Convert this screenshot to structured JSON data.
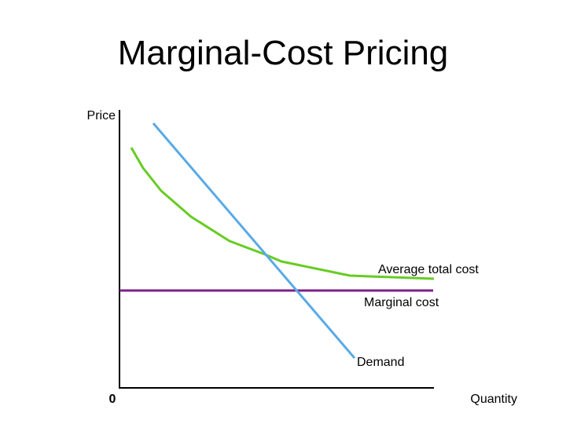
{
  "title": "Marginal-Cost Pricing",
  "axes": {
    "y_label": "Price",
    "x_label": "Quantity",
    "origin_label": "0"
  },
  "curves": [
    {
      "id": "demand",
      "label": "Demand",
      "color": "#5aaae6"
    },
    {
      "id": "average-total-cost",
      "label": "Average total cost",
      "color": "#66cc22"
    },
    {
      "id": "marginal-cost",
      "label": "Marginal cost",
      "color": "#7b1f8a"
    }
  ],
  "colors": {
    "axis": "#000000",
    "background": "#ffffff"
  }
}
